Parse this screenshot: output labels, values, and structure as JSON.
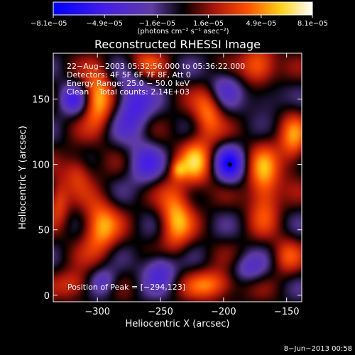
{
  "chart_data": {
    "type": "heatmap",
    "title": "Reconstructed RHESSI Image",
    "xlabel": "Heliocentric X (arcsec)",
    "ylabel": "Heliocentric Y (arcsec)",
    "xlim": [
      -335,
      -138
    ],
    "ylim": [
      -5,
      185
    ],
    "xticks": [
      -300,
      -250,
      -200,
      -150
    ],
    "yticks": [
      0,
      50,
      100,
      150
    ],
    "xtick_labels": [
      "−300",
      "−250",
      "−200",
      "−150"
    ],
    "ytick_labels": [
      "0",
      "50",
      "100",
      "150"
    ],
    "colorbar": {
      "min": -8.1e-05,
      "max": 8.1e-05,
      "tick_values": [
        -8.1e-05,
        -4.9e-05,
        -1.6e-05,
        1.6e-05,
        4.9e-05,
        8.1e-05
      ],
      "tick_labels": [
        "−8.1e−05",
        "−4.9e−05",
        "−1.6e−05",
        "1.6e−05",
        "4.9e−05",
        "8.1e−05"
      ],
      "unit_label": "(photons cm⁻² s⁻¹ asec⁻²)"
    },
    "annotations": [
      "22−Aug−2003 05:32:56.000 to 05:36:22.000",
      "Detectors: 4F 5F 6F 7F 8F, Att 0",
      "Energy Range: 25.0 − 50.0 keV",
      "Clean    Total counts: 2.14E+03"
    ],
    "peak_label": "Position of Peak = [−294,123]",
    "peak_position": [
      -294,
      123
    ],
    "footer": "8−Jun−2013 00:58",
    "sources": [
      {
        "x": -300,
        "y": 150,
        "amp": 1.0,
        "sx": 8,
        "sy": 16
      },
      {
        "x": -316,
        "y": 95,
        "amp": 0.55,
        "sx": 8,
        "sy": 10
      },
      {
        "x": -298,
        "y": 52,
        "amp": 0.9,
        "sx": 10,
        "sy": 16
      },
      {
        "x": -331,
        "y": 72,
        "amp": 0.6,
        "sx": 6,
        "sy": 12
      },
      {
        "x": -318,
        "y": 8,
        "amp": 0.6,
        "sx": 10,
        "sy": 8
      },
      {
        "x": -262,
        "y": 178,
        "amp": 0.5,
        "sx": 10,
        "sy": 8
      },
      {
        "x": -238,
        "y": 60,
        "amp": 0.9,
        "sx": 9,
        "sy": 20
      },
      {
        "x": -222,
        "y": 102,
        "amp": 0.85,
        "sx": 9,
        "sy": 14
      },
      {
        "x": -236,
        "y": 96,
        "amp": 0.5,
        "sx": 4,
        "sy": 5
      },
      {
        "x": -212,
        "y": 140,
        "amp": 0.75,
        "sx": 8,
        "sy": 14
      },
      {
        "x": -208,
        "y": 8,
        "amp": 0.8,
        "sx": 14,
        "sy": 8
      },
      {
        "x": -172,
        "y": 175,
        "amp": 0.9,
        "sx": 10,
        "sy": 10
      },
      {
        "x": -168,
        "y": 85,
        "amp": 0.9,
        "sx": 9,
        "sy": 22
      },
      {
        "x": -145,
        "y": 118,
        "amp": 0.7,
        "sx": 8,
        "sy": 16
      },
      {
        "x": -150,
        "y": 30,
        "amp": 0.5,
        "sx": 8,
        "sy": 10
      },
      {
        "x": -272,
        "y": 145,
        "amp": -0.8,
        "sx": 10,
        "sy": 16
      },
      {
        "x": -262,
        "y": 100,
        "amp": -0.6,
        "sx": 10,
        "sy": 12
      },
      {
        "x": -250,
        "y": 20,
        "amp": -0.7,
        "sx": 10,
        "sy": 10
      },
      {
        "x": -195,
        "y": 100,
        "amp": -1.0,
        "sx": 8,
        "sy": 10
      },
      {
        "x": -200,
        "y": 160,
        "amp": -0.5,
        "sx": 10,
        "sy": 10
      },
      {
        "x": -320,
        "y": 150,
        "amp": -0.7,
        "sx": 8,
        "sy": 8
      },
      {
        "x": -295,
        "y": 10,
        "amp": -0.6,
        "sx": 8,
        "sy": 8
      },
      {
        "x": -168,
        "y": 150,
        "amp": -0.4,
        "sx": 10,
        "sy": 10
      },
      {
        "x": -180,
        "y": 20,
        "amp": -0.5,
        "sx": 10,
        "sy": 8
      }
    ],
    "grid": false
  }
}
